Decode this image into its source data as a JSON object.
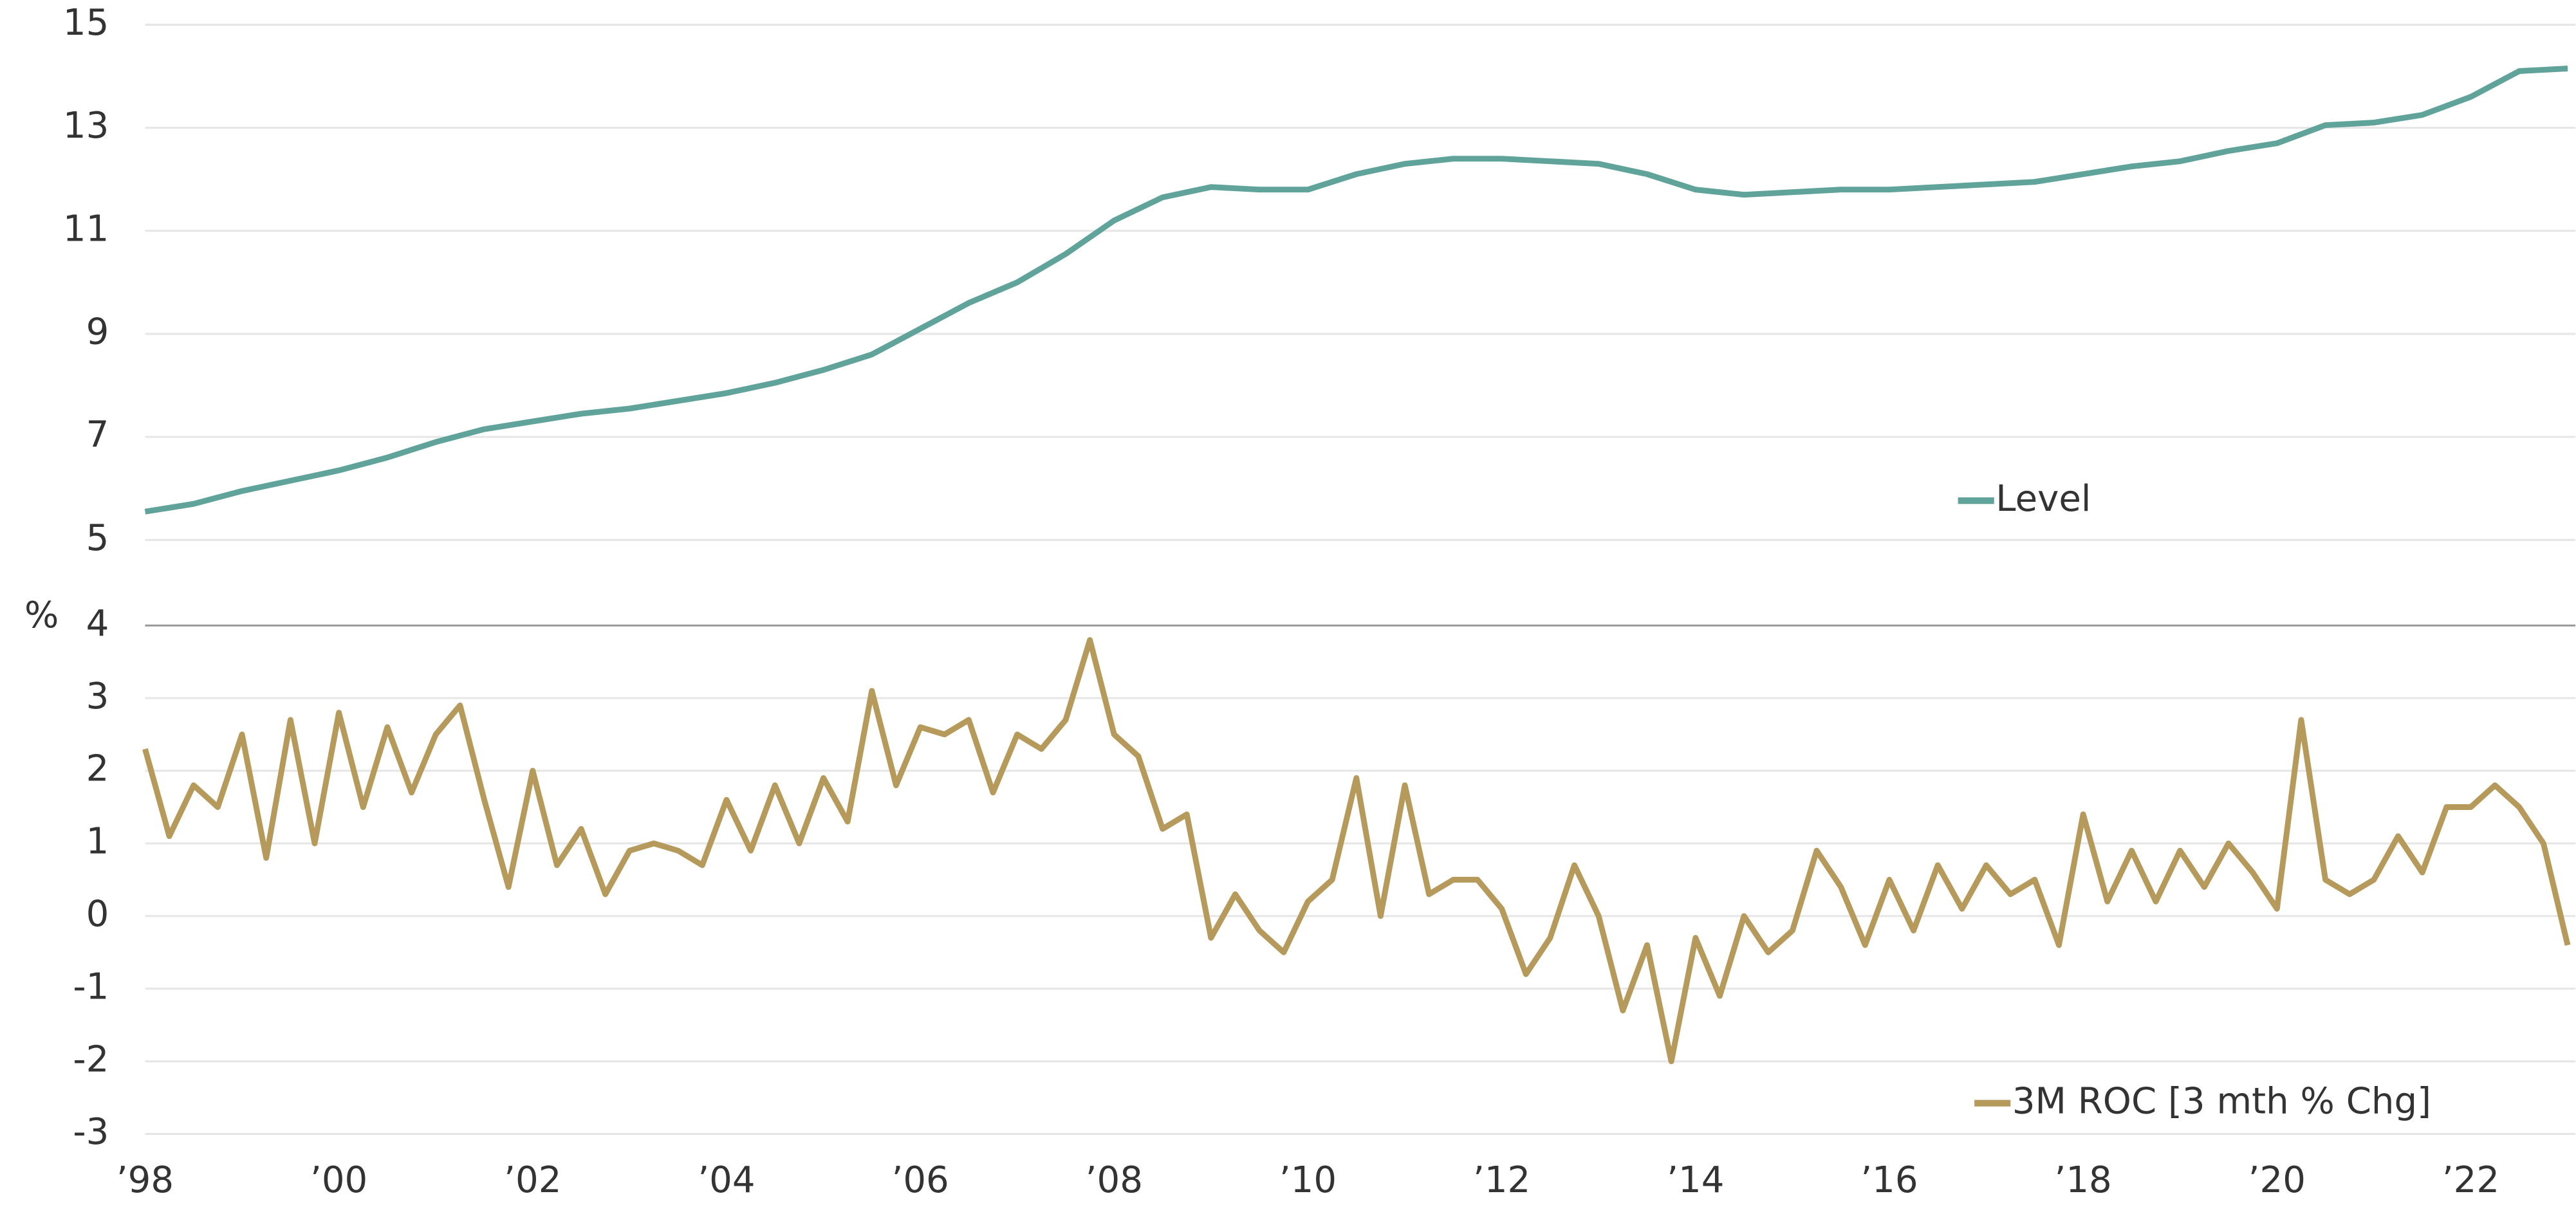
{
  "chart_data": [
    {
      "type": "line",
      "ylabel": "%",
      "ylim": [
        3.34,
        15.48
      ],
      "yticks": [
        5,
        7,
        9,
        11,
        13,
        15
      ],
      "xlim": [
        1998,
        2023.08
      ],
      "grid": true,
      "legend": "center-right",
      "x": [
        1998,
        1998.5,
        1999,
        1999.5,
        2000,
        2000.5,
        2001,
        2001.5,
        2002,
        2002.5,
        2003,
        2003.5,
        2004,
        2004.5,
        2005,
        2005.5,
        2006,
        2006.5,
        2007,
        2007.5,
        2008,
        2008.5,
        2009,
        2009.5,
        2010,
        2010.5,
        2011,
        2011.5,
        2012,
        2012.5,
        2013,
        2013.5,
        2014,
        2014.5,
        2015,
        2015.5,
        2016,
        2016.5,
        2017,
        2017.5,
        2018,
        2018.5,
        2019,
        2019.5,
        2020,
        2020.5,
        2021,
        2021.5,
        2022,
        2022.5,
        2023
      ],
      "series": [
        {
          "name": "Level",
          "color": "#5fa39a",
          "values": [
            5.55,
            5.7,
            5.95,
            6.15,
            6.35,
            6.6,
            6.9,
            7.15,
            7.3,
            7.45,
            7.55,
            7.7,
            7.85,
            8.05,
            8.3,
            8.6,
            9.1,
            9.6,
            10.0,
            10.55,
            11.2,
            11.65,
            11.85,
            11.8,
            11.8,
            12.1,
            12.3,
            12.4,
            12.4,
            12.35,
            12.3,
            12.1,
            11.8,
            11.7,
            11.75,
            11.8,
            11.8,
            11.85,
            11.9,
            11.95,
            12.1,
            12.25,
            12.35,
            12.55,
            12.7,
            13.05,
            13.1,
            13.25,
            13.6,
            14.1,
            14.15
          ]
        }
      ]
    },
    {
      "type": "line",
      "ylim": [
        -3.3,
        4
      ],
      "yticks": [
        -3,
        -2,
        -1,
        0,
        1,
        2,
        3,
        4
      ],
      "xlim": [
        1998,
        2023.08
      ],
      "grid": true,
      "legend": "bottom-right",
      "xticks": [
        {
          "value": 1998,
          "label": "’98"
        },
        {
          "value": 2000,
          "label": "’00"
        },
        {
          "value": 2002,
          "label": "’02"
        },
        {
          "value": 2004,
          "label": "’04"
        },
        {
          "value": 2006,
          "label": "’06"
        },
        {
          "value": 2008,
          "label": "’08"
        },
        {
          "value": 2010,
          "label": "’10"
        },
        {
          "value": 2012,
          "label": "’12"
        },
        {
          "value": 2014,
          "label": "’14"
        },
        {
          "value": 2016,
          "label": "’16"
        },
        {
          "value": 2018,
          "label": "’18"
        },
        {
          "value": 2020,
          "label": "’20"
        },
        {
          "value": 2022,
          "label": "’22"
        }
      ],
      "x": [
        1998,
        1998.25,
        1998.5,
        1998.75,
        1999,
        1999.25,
        1999.5,
        1999.75,
        2000,
        2000.25,
        2000.5,
        2000.75,
        2001,
        2001.25,
        2001.5,
        2001.75,
        2002,
        2002.25,
        2002.5,
        2002.75,
        2003,
        2003.25,
        2003.5,
        2003.75,
        2004,
        2004.25,
        2004.5,
        2004.75,
        2005,
        2005.25,
        2005.5,
        2005.75,
        2006,
        2006.25,
        2006.5,
        2006.75,
        2007,
        2007.25,
        2007.5,
        2007.75,
        2008,
        2008.25,
        2008.5,
        2008.75,
        2009,
        2009.25,
        2009.5,
        2009.75,
        2010,
        2010.25,
        2010.5,
        2010.75,
        2011,
        2011.25,
        2011.5,
        2011.75,
        2012,
        2012.25,
        2012.5,
        2012.75,
        2013,
        2013.25,
        2013.5,
        2013.75,
        2014,
        2014.25,
        2014.5,
        2014.75,
        2015,
        2015.25,
        2015.5,
        2015.75,
        2016,
        2016.25,
        2016.5,
        2016.75,
        2017,
        2017.25,
        2017.5,
        2017.75,
        2018,
        2018.25,
        2018.5,
        2018.75,
        2019,
        2019.25,
        2019.5,
        2019.75,
        2020,
        2020.25,
        2020.5,
        2020.75,
        2021,
        2021.25,
        2021.5,
        2021.75,
        2022,
        2022.25,
        2022.5,
        2022.75,
        2023
      ],
      "series": [
        {
          "name": "3M ROC [3 mth % Chg]",
          "color": "#b59a5c",
          "values": [
            2.3,
            1.1,
            1.8,
            1.5,
            2.5,
            0.8,
            2.7,
            1.0,
            2.8,
            1.5,
            2.6,
            1.7,
            2.5,
            2.9,
            1.6,
            0.4,
            2.0,
            0.7,
            1.2,
            0.3,
            0.9,
            1.0,
            0.9,
            0.7,
            1.6,
            0.9,
            1.8,
            1.0,
            1.9,
            1.3,
            3.1,
            1.8,
            2.6,
            2.5,
            2.7,
            1.7,
            2.5,
            2.3,
            2.7,
            3.8,
            2.5,
            2.2,
            1.2,
            1.4,
            -0.3,
            0.3,
            -0.2,
            -0.5,
            0.2,
            0.5,
            1.9,
            0.0,
            1.8,
            0.3,
            0.5,
            0.5,
            0.1,
            -0.8,
            -0.3,
            0.7,
            0.0,
            -1.3,
            -0.4,
            -2.0,
            -0.3,
            -1.1,
            0.0,
            -0.5,
            -0.2,
            0.9,
            0.4,
            -0.4,
            0.5,
            -0.2,
            0.7,
            0.1,
            0.7,
            0.3,
            0.5,
            -0.4,
            1.4,
            0.2,
            0.9,
            0.2,
            0.9,
            0.4,
            1.0,
            0.6,
            0.1,
            2.7,
            0.5,
            0.3,
            0.5,
            1.1,
            0.6,
            1.5,
            1.5,
            1.8,
            1.5,
            1.0,
            -0.4
          ]
        }
      ]
    }
  ]
}
